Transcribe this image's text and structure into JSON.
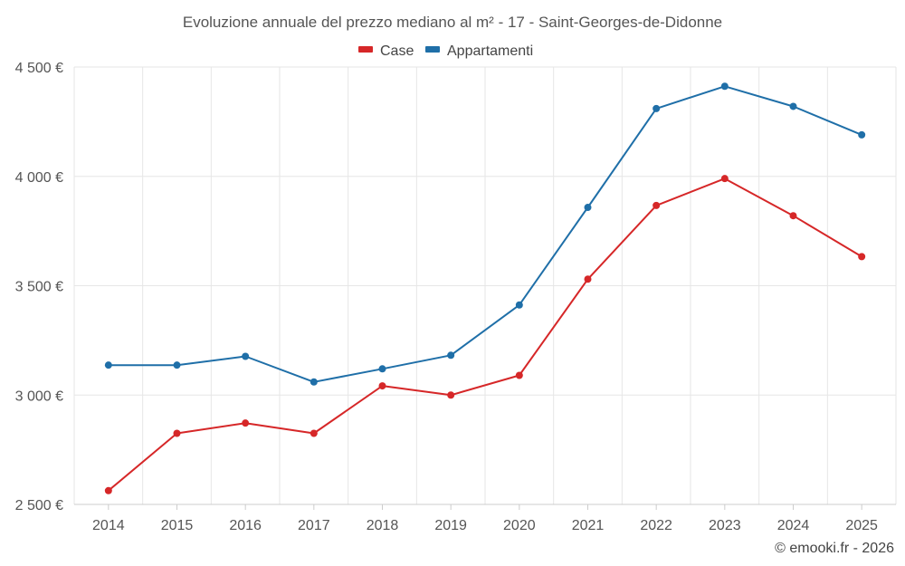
{
  "colors": {
    "case": "#d62728",
    "appartamenti": "#1f6fa8"
  },
  "chart_data": {
    "type": "line",
    "title": "Evoluzione annuale del prezzo mediano al m² - 17 - Saint-Georges-de-Didonne",
    "categories": [
      "2014",
      "2015",
      "2016",
      "2017",
      "2018",
      "2019",
      "2020",
      "2021",
      "2022",
      "2023",
      "2024",
      "2025"
    ],
    "series": [
      {
        "name": "Case",
        "values": [
          2563,
          2825,
          2872,
          2825,
          3042,
          3000,
          3090,
          3530,
          3867,
          3990,
          3820,
          3633
        ]
      },
      {
        "name": "Appartamenti",
        "values": [
          3137,
          3137,
          3177,
          3060,
          3120,
          3182,
          3412,
          3858,
          4310,
          4412,
          4320,
          4190
        ]
      }
    ],
    "y_ticks": [
      "2 500 €",
      "3 000 €",
      "3 500 €",
      "4 000 €",
      "4 500 €"
    ],
    "ylim": [
      2500,
      4500
    ],
    "xlabel": "",
    "ylabel": "",
    "legend_position": "top-center",
    "grid": true
  },
  "credit": "© emooki.fr - 2026"
}
